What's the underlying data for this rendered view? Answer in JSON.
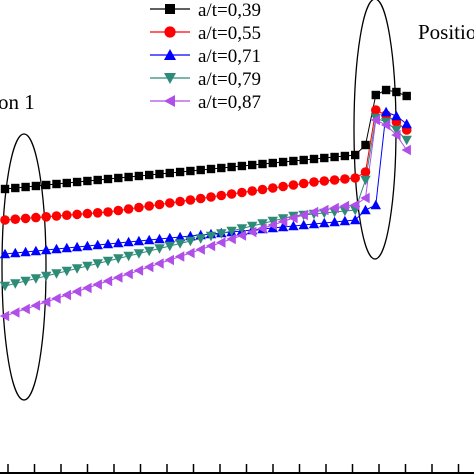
{
  "chart_data": {
    "type": "line",
    "annotations": [
      "on 1",
      "Positio"
    ],
    "xlabel": "",
    "ylabel": "",
    "grid": false,
    "legend_position": "top",
    "series": [
      {
        "name": "a/t=0,39",
        "color": "#000000",
        "marker": "square",
        "x": [
          0,
          1,
          2,
          3,
          4,
          5,
          6,
          7,
          8,
          9,
          10,
          11,
          12,
          13,
          14,
          15,
          16,
          17,
          18,
          19,
          20,
          21,
          22,
          23,
          24,
          25,
          26,
          27,
          28,
          29,
          30,
          31,
          32,
          33,
          34,
          35,
          36,
          37,
          38,
          39
        ],
        "y": [
          189,
          188,
          187,
          186,
          185,
          184,
          183,
          182,
          181,
          180,
          179,
          178,
          177,
          176,
          175,
          174,
          173,
          172,
          171,
          170,
          169,
          168,
          167,
          166,
          165,
          164,
          163,
          162,
          161,
          160,
          159,
          158,
          157,
          156,
          155,
          145,
          95,
          90,
          92,
          96
        ]
      },
      {
        "name": "a/t=0,55",
        "color": "#ff0000",
        "marker": "circle",
        "x": [
          0,
          1,
          2,
          3,
          4,
          5,
          6,
          7,
          8,
          9,
          10,
          11,
          12,
          13,
          14,
          15,
          16,
          17,
          18,
          19,
          20,
          21,
          22,
          23,
          24,
          25,
          26,
          27,
          28,
          29,
          30,
          31,
          32,
          33,
          34,
          35,
          36,
          37,
          38,
          39
        ],
        "y": [
          220,
          219.2,
          218.4,
          217.6,
          216.8,
          216,
          215.2,
          214.4,
          213.6,
          212.8,
          212,
          210.5,
          209,
          207.5,
          206,
          204.5,
          203,
          201.5,
          200,
          198.5,
          197,
          195.5,
          194,
          192.5,
          191,
          189.5,
          188,
          186.5,
          185,
          183.5,
          182,
          181,
          180,
          179,
          178,
          172,
          110,
          115,
          122,
          130
        ]
      },
      {
        "name": "a/t=0,71",
        "color": "#0000ff",
        "marker": "triangle-up",
        "x": [
          0,
          1,
          2,
          3,
          4,
          5,
          6,
          7,
          8,
          9,
          10,
          11,
          12,
          13,
          14,
          15,
          16,
          17,
          18,
          19,
          20,
          21,
          22,
          23,
          24,
          25,
          26,
          27,
          28,
          29,
          30,
          31,
          32,
          33,
          34,
          35,
          36,
          37,
          38,
          39
        ],
        "y": [
          254,
          253,
          252,
          251,
          250,
          249,
          248,
          247,
          246,
          245,
          244,
          243,
          242,
          241,
          240,
          239,
          238,
          237,
          236,
          235,
          234,
          233,
          232,
          231,
          230,
          229,
          228,
          227,
          226,
          225,
          224,
          223,
          222,
          221,
          220,
          210,
          205,
          112,
          116,
          124
        ]
      },
      {
        "name": "a/t=0,79",
        "color": "#2e8b77",
        "marker": "triangle-down",
        "x": [
          0,
          1,
          2,
          3,
          4,
          5,
          6,
          7,
          8,
          9,
          10,
          11,
          12,
          13,
          14,
          15,
          16,
          17,
          18,
          19,
          20,
          21,
          22,
          23,
          24,
          25,
          26,
          27,
          28,
          29,
          30,
          31,
          32,
          33,
          34,
          35,
          36,
          37,
          38,
          39
        ],
        "y": [
          286,
          283.5,
          281,
          278.5,
          276,
          273.5,
          271,
          268.5,
          266,
          263.5,
          261,
          258.5,
          256,
          253.5,
          251,
          248.5,
          246,
          243.5,
          241,
          238.5,
          236,
          233.5,
          231,
          228.5,
          226,
          223.5,
          221,
          218.5,
          216,
          215,
          214,
          213,
          212,
          211,
          210,
          180,
          118,
          122,
          130,
          140
        ]
      },
      {
        "name": "a/t=0,87",
        "color": "#b04ee8",
        "marker": "triangle-left",
        "x": [
          0,
          1,
          2,
          3,
          4,
          5,
          6,
          7,
          8,
          9,
          10,
          11,
          12,
          13,
          14,
          15,
          16,
          17,
          18,
          19,
          20,
          21,
          22,
          23,
          24,
          25,
          26,
          27,
          28,
          29,
          30,
          31,
          32,
          33,
          34,
          35,
          36,
          37,
          38,
          39
        ],
        "y": [
          316,
          312.5,
          309,
          305.5,
          302,
          298.5,
          295,
          291.5,
          288,
          284.5,
          281,
          277.5,
          274,
          270.5,
          267,
          263.5,
          260,
          256.5,
          253,
          249.5,
          246,
          242.5,
          239,
          235.5,
          232,
          228.5,
          225,
          221.5,
          218,
          215,
          212,
          210,
          208,
          206,
          205,
          198,
          120,
          125,
          135,
          150
        ]
      }
    ]
  }
}
